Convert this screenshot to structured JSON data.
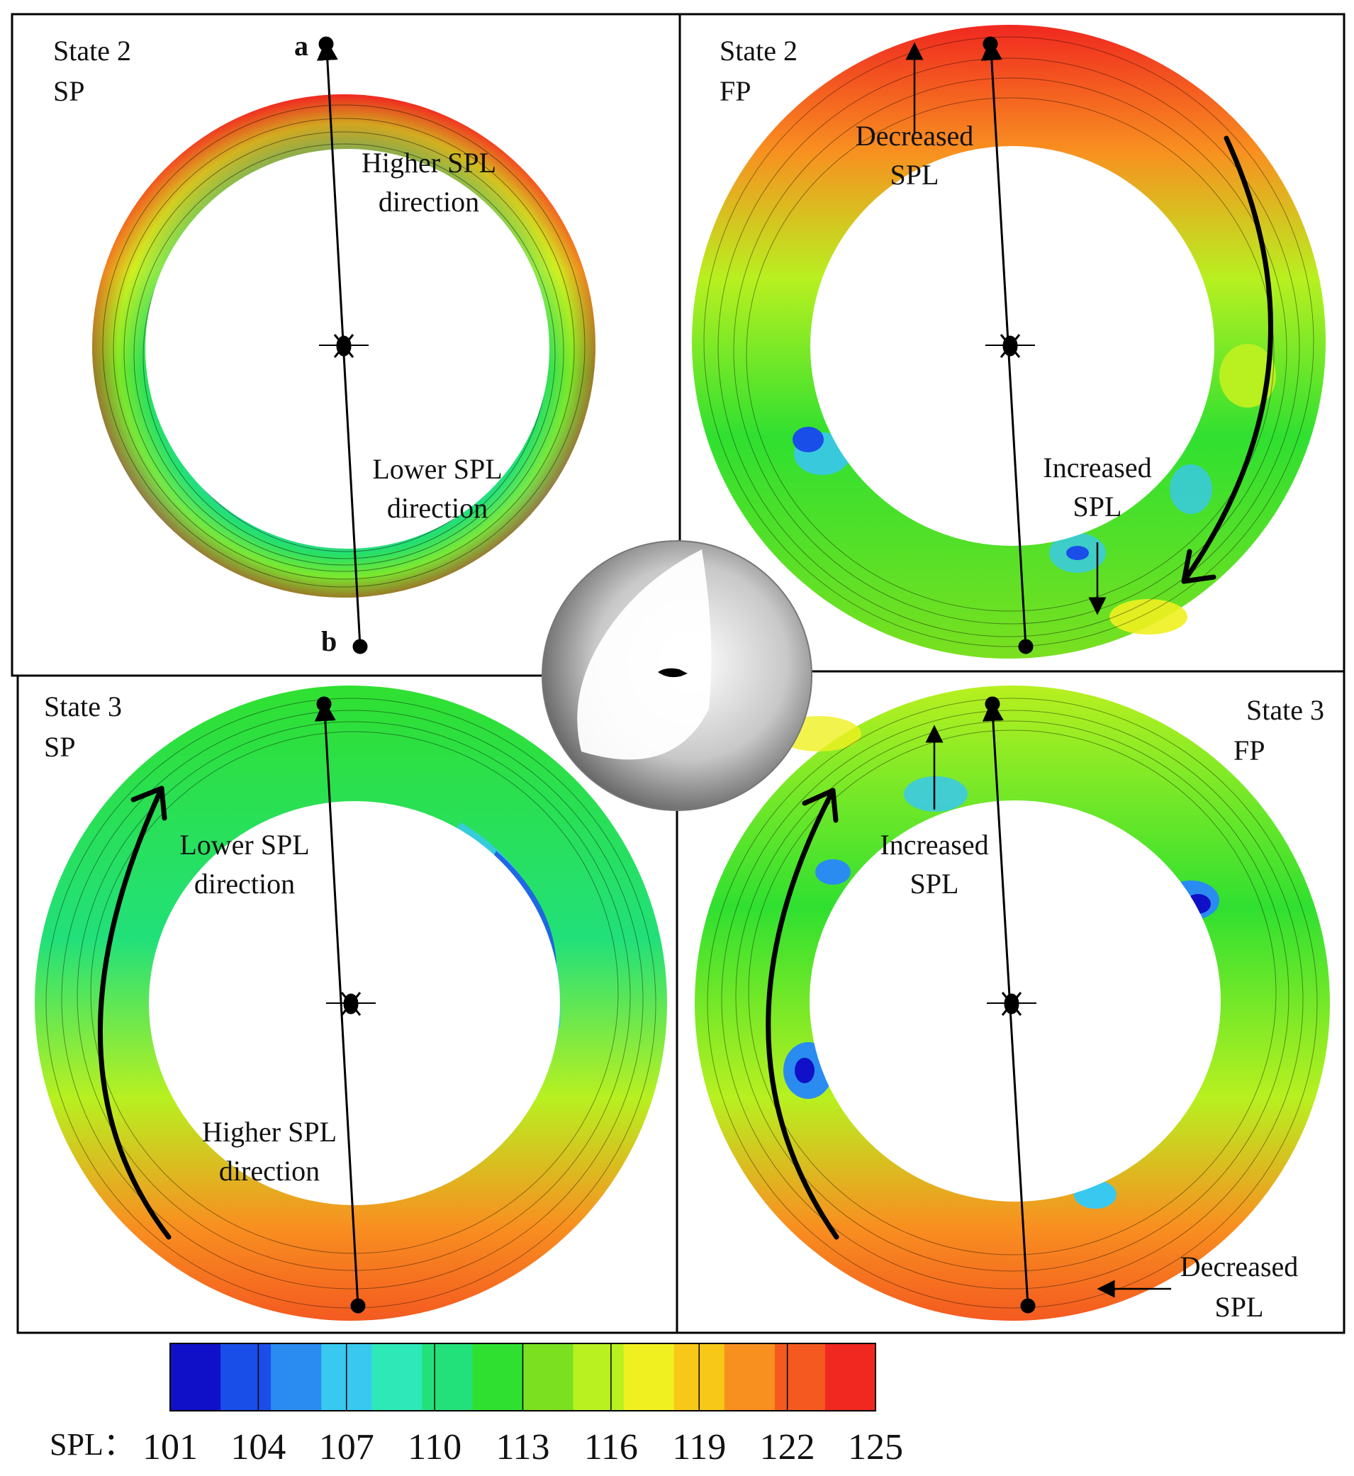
{
  "panels": {
    "top_left": {
      "state": "State 2",
      "mode": "SP",
      "point_a": "a",
      "point_b": "b",
      "note1_line1": "Higher SPL",
      "note1_line2": "direction",
      "note2_line1": "Lower SPL",
      "note2_line2": "direction"
    },
    "top_right": {
      "state": "State 2",
      "mode": "FP",
      "note1_line1": "Decreased",
      "note1_line2": "SPL",
      "note2_line1": "Increased",
      "note2_line2": "SPL"
    },
    "bottom_left": {
      "state": "State 3",
      "mode": "SP",
      "note1_line1": "Lower SPL",
      "note1_line2": "direction",
      "note2_line1": "Higher SPL",
      "note2_line2": "direction"
    },
    "bottom_right": {
      "state": "State 3",
      "mode": "FP",
      "note1_line1": "Increased",
      "note1_line2": "SPL",
      "note2_line1": "Decreased",
      "note2_line2": "SPL"
    }
  },
  "colorbar": {
    "label": "SPL：",
    "ticks": [
      "101",
      "104",
      "107",
      "110",
      "113",
      "116",
      "119",
      "122",
      "125"
    ],
    "colors": [
      "#1010c8",
      "#1a4ee8",
      "#2a8cf0",
      "#38c8f0",
      "#2ee8b8",
      "#22e07a",
      "#30e030",
      "#7ae020",
      "#b8f020",
      "#f0f020",
      "#f8c818",
      "#f89020",
      "#f45a20",
      "#f02820"
    ]
  },
  "icons": {
    "center_sphere": "sphere-icon",
    "helicopter": "helicopter-icon"
  }
}
